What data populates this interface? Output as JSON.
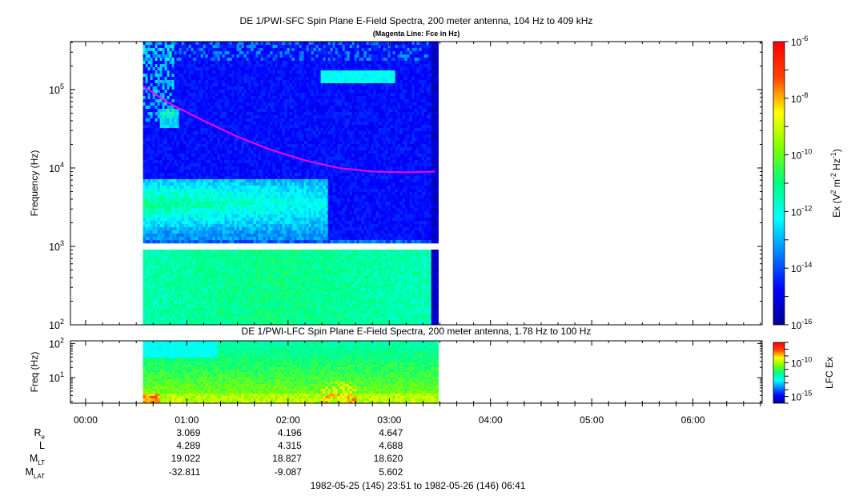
{
  "chart_data": [
    {
      "type": "heatmap",
      "title": "DE 1/PWI-SFC  Spin Plane E-Field Spectra, 200 meter antenna, 104 Hz to 409 kHz",
      "subtitle": "(Magenta Line: Fce in Hz)",
      "ylabel": "Frequency (Hz)",
      "yscale": "log",
      "ylim": [
        100,
        409000
      ],
      "yticks": [
        {
          "v": 100,
          "base": "10",
          "exp": "2"
        },
        {
          "v": 1000,
          "base": "10",
          "exp": "3"
        },
        {
          "v": 10000,
          "base": "10",
          "exp": "4"
        },
        {
          "v": 100000,
          "base": "10",
          "exp": "5"
        }
      ],
      "colorbar": {
        "label_main": "Ex (V",
        "label_sup1": "2",
        "label_mid": " m",
        "label_sup2": "-2",
        "label_mid2": " Hz",
        "label_sup3": "-1",
        "label_end": ")",
        "scale": "log",
        "range": [
          1e-16,
          1e-06
        ],
        "ticks": [
          {
            "v": -6,
            "base": "10",
            "exp": "-6"
          },
          {
            "v": -8,
            "base": "10",
            "exp": "-8"
          },
          {
            "v": -10,
            "base": "10",
            "exp": "-10"
          },
          {
            "v": -12,
            "base": "10",
            "exp": "-12"
          },
          {
            "v": -14,
            "base": "10",
            "exp": "-14"
          },
          {
            "v": -16,
            "base": "10",
            "exp": "-16"
          }
        ]
      },
      "data_start": "00:34",
      "data_end": "03:29",
      "gap_hz": [
        880,
        1050
      ],
      "fce_line": {
        "color": "#ff00ff",
        "x": [
          "00:34",
          "00:50",
          "01:10",
          "01:30",
          "01:50",
          "02:10",
          "02:30",
          "02:50",
          "03:10",
          "03:27"
        ],
        "y": [
          110000,
          66000,
          40000,
          25000,
          17000,
          12500,
          10000,
          9000,
          8800,
          9000
        ]
      }
    },
    {
      "type": "heatmap",
      "title": "DE 1/PWI-LFC  Spin Plane E-Field Spectra, 200 meter antenna, 1.78 Hz to 100 Hz",
      "ylabel": "Freq (Hz)",
      "yscale": "log",
      "ylim": [
        1.78,
        120
      ],
      "yticks": [
        {
          "v": 10,
          "base": "10",
          "exp": "1"
        },
        {
          "v": 100,
          "base": "10",
          "exp": "2"
        }
      ],
      "colorbar": {
        "label": "LFC Ex",
        "scale": "log",
        "range": [
          1e-16,
          1e-07
        ],
        "ticks": [
          {
            "v": -10,
            "base": "10",
            "exp": "-10"
          },
          {
            "v": -15,
            "base": "10",
            "exp": "-15"
          }
        ]
      },
      "data_start": "00:34",
      "data_end": "03:29"
    }
  ],
  "time_axis": {
    "range": [
      "23:51",
      "06:41"
    ],
    "ticks": [
      "00:00",
      "01:00",
      "02:00",
      "03:00",
      "04:00",
      "05:00",
      "06:00"
    ]
  },
  "ephemeris": {
    "labels": [
      {
        "base": "R",
        "sub": "e"
      },
      {
        "base": "L",
        "sub": ""
      },
      {
        "base": "M",
        "sub": "LT"
      },
      {
        "base": "M",
        "sub": "LAT"
      }
    ],
    "columns": [
      {
        "time": "01:00",
        "values": [
          "3.069",
          "4.289",
          "19.022",
          "-32.811"
        ]
      },
      {
        "time": "02:00",
        "values": [
          "4.196",
          "4.315",
          "18.827",
          "-9.087"
        ]
      },
      {
        "time": "03:00",
        "values": [
          "4.647",
          "4.688",
          "18.620",
          "5.602"
        ]
      }
    ]
  },
  "footer": "1982-05-25 (145) 23:51 to 1982-05-26 (146) 06:41"
}
